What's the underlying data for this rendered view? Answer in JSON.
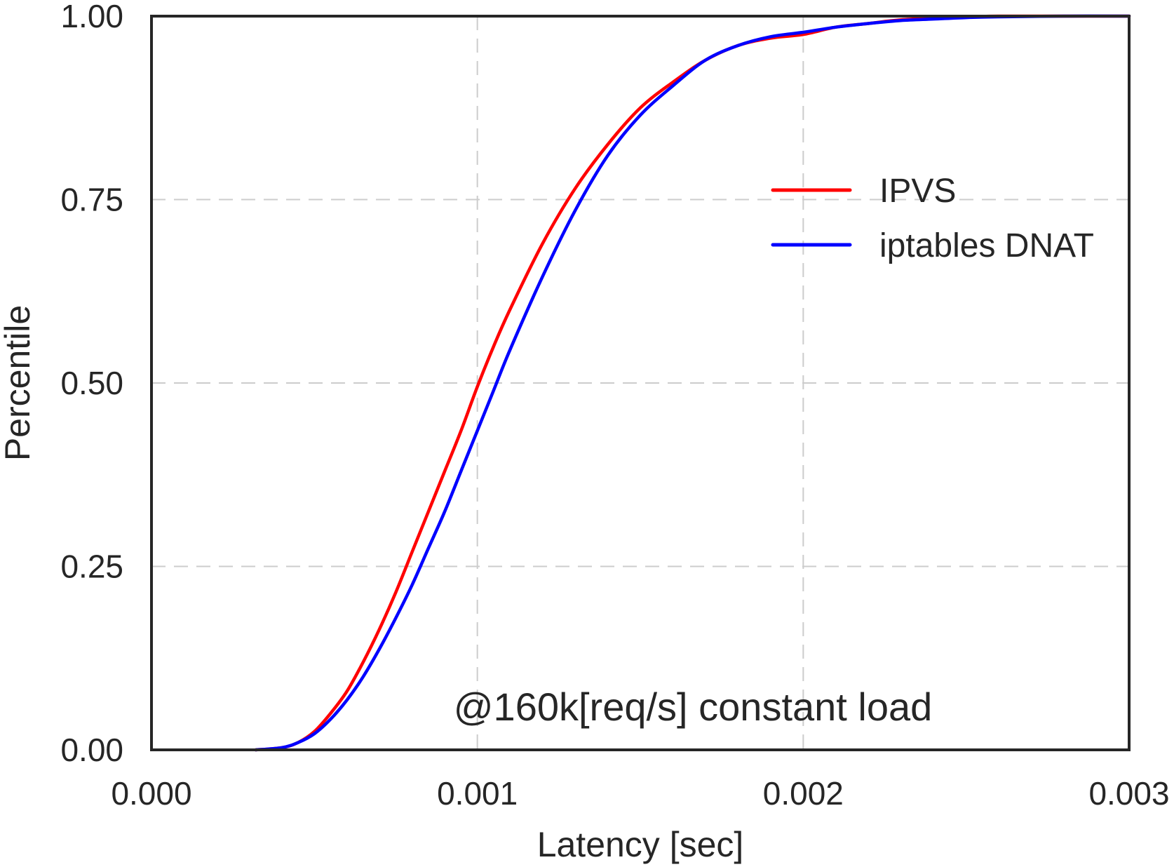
{
  "chart_data": {
    "type": "line",
    "title": "",
    "xlabel": "Latency [sec]",
    "ylabel": "Percentile",
    "xlim": [
      0.0,
      0.003
    ],
    "ylim": [
      0.0,
      1.0
    ],
    "x_ticks": [
      "0.000",
      "0.001",
      "0.002",
      "0.003"
    ],
    "x_tick_values": [
      0.0,
      0.001,
      0.002,
      0.003
    ],
    "y_ticks": [
      "0.00",
      "0.25",
      "0.50",
      "0.75",
      "1.00"
    ],
    "y_tick_values": [
      0.0,
      0.25,
      0.5,
      0.75,
      1.0
    ],
    "grid": true,
    "legend_position": "upper-right",
    "annotation": "@160k[req/s] constant load",
    "series": [
      {
        "name": "IPVS",
        "color": "#ff0000",
        "x": [
          0.00032,
          0.0004,
          0.00045,
          0.0005,
          0.00055,
          0.0006,
          0.00065,
          0.0007,
          0.00075,
          0.0008,
          0.00085,
          0.0009,
          0.00095,
          0.001,
          0.00105,
          0.0011,
          0.0012,
          0.0013,
          0.0014,
          0.0015,
          0.0016,
          0.0017,
          0.0018,
          0.0019,
          0.002,
          0.0021,
          0.0022,
          0.0023,
          0.0024,
          0.0025,
          0.0026,
          0.0028,
          0.003
        ],
        "y": [
          0.0,
          0.003,
          0.01,
          0.025,
          0.05,
          0.08,
          0.12,
          0.165,
          0.215,
          0.27,
          0.325,
          0.38,
          0.435,
          0.495,
          0.55,
          0.6,
          0.69,
          0.765,
          0.825,
          0.875,
          0.91,
          0.94,
          0.96,
          0.97,
          0.975,
          0.985,
          0.99,
          0.995,
          0.997,
          0.999,
          1.0,
          1.0,
          1.0
        ]
      },
      {
        "name": "iptables DNAT",
        "color": "#0000ff",
        "x": [
          0.00032,
          0.0004,
          0.00045,
          0.0005,
          0.00055,
          0.0006,
          0.00065,
          0.0007,
          0.00075,
          0.0008,
          0.00085,
          0.0009,
          0.00095,
          0.001,
          0.00105,
          0.0011,
          0.0012,
          0.0013,
          0.0014,
          0.0015,
          0.0016,
          0.0017,
          0.0018,
          0.0019,
          0.002,
          0.0021,
          0.0022,
          0.0023,
          0.0024,
          0.0025,
          0.0026,
          0.0028,
          0.003
        ],
        "y": [
          0.0,
          0.003,
          0.01,
          0.022,
          0.042,
          0.068,
          0.1,
          0.138,
          0.18,
          0.225,
          0.275,
          0.325,
          0.38,
          0.435,
          0.49,
          0.545,
          0.645,
          0.735,
          0.81,
          0.865,
          0.905,
          0.94,
          0.96,
          0.972,
          0.978,
          0.985,
          0.99,
          0.994,
          0.996,
          0.998,
          0.999,
          1.0,
          1.0
        ]
      }
    ]
  }
}
